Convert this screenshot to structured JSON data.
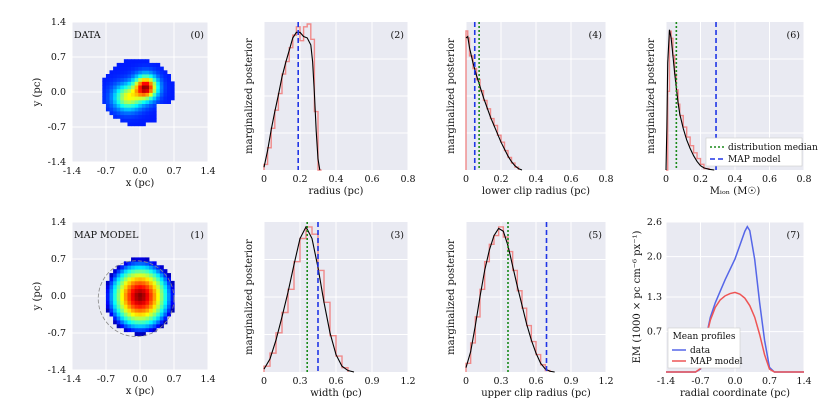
{
  "colors": {
    "panel_bg": "#E9EAF2",
    "grid": "#FFFFFF",
    "hist": "#F08A8A",
    "kde": "#000000",
    "median": "#1A8A1A",
    "map": "#2035E6",
    "profile_data": "#5566E8",
    "profile_map": "#EE5555"
  },
  "chart_data": [
    {
      "id": "p0",
      "type": "heatmap",
      "label": "(0)",
      "title": "DATA",
      "xlabel": "x (pc)",
      "ylabel": "y (pc)",
      "xlim": [
        -1.4,
        1.4
      ],
      "ylim": [
        -1.4,
        1.4
      ],
      "xticks": [
        "-1.4",
        "-0.7",
        "0.0",
        "0.7",
        "1.4"
      ],
      "yticks": [
        "1.4",
        "0.7",
        "0.0",
        "-0.7",
        "-1.4"
      ]
    },
    {
      "id": "p1",
      "type": "heatmap",
      "label": "(1)",
      "title": "MAP MODEL",
      "xlabel": "x (pc)",
      "ylabel": "y (pc)",
      "xlim": [
        -1.4,
        1.4
      ],
      "ylim": [
        -1.4,
        1.4
      ],
      "xticks": [
        "-1.4",
        "-0.7",
        "0.0",
        "0.7",
        "1.4"
      ],
      "yticks": [
        "1.4",
        "0.7",
        "0.0",
        "-0.7",
        "-1.4"
      ]
    },
    {
      "id": "p2",
      "type": "histogram",
      "label": "(2)",
      "xlabel": "radius (pc)",
      "ylabel": "marginalized posterior",
      "xlim": [
        0,
        0.8
      ],
      "xticks": [
        "0",
        "0.2",
        "0.4",
        "0.6",
        "0.8"
      ],
      "xtick_values": [
        0,
        0.2,
        0.4,
        0.6,
        0.8
      ],
      "bin_edges": [
        0.0,
        0.02,
        0.04,
        0.06,
        0.08,
        0.1,
        0.12,
        0.14,
        0.16,
        0.18,
        0.2,
        0.22,
        0.24,
        0.26,
        0.28,
        0.3,
        0.32
      ],
      "hist": [
        0.04,
        0.16,
        0.3,
        0.43,
        0.55,
        0.69,
        0.78,
        0.88,
        0.97,
        1.03,
        0.93,
        1.03,
        1.05,
        0.94,
        0.42,
        0.0
      ],
      "kde_x": [
        0.0,
        0.02,
        0.04,
        0.06,
        0.08,
        0.1,
        0.12,
        0.14,
        0.16,
        0.18,
        0.2,
        0.22,
        0.24,
        0.26,
        0.27,
        0.28,
        0.29,
        0.3,
        0.31
      ],
      "kde_y": [
        0.02,
        0.14,
        0.29,
        0.42,
        0.54,
        0.67,
        0.77,
        0.86,
        0.95,
        0.99,
        0.99,
        0.96,
        0.95,
        0.9,
        0.78,
        0.55,
        0.28,
        0.08,
        0.0
      ],
      "ymax": 1.05,
      "map": 0.19,
      "median": null
    },
    {
      "id": "p3",
      "type": "histogram",
      "label": "(3)",
      "xlabel": "width (pc)",
      "ylabel": "marginalized posterior",
      "xlim": [
        0,
        1.2
      ],
      "xticks": [
        "0",
        "0.3",
        "0.6",
        "0.9",
        "1.2"
      ],
      "xtick_values": [
        0,
        0.3,
        0.6,
        0.9,
        1.2
      ],
      "bin_edges": [
        0.0,
        0.05,
        0.1,
        0.15,
        0.2,
        0.25,
        0.3,
        0.35,
        0.4,
        0.45,
        0.5,
        0.55,
        0.6,
        0.65,
        0.7
      ],
      "hist": [
        0.04,
        0.13,
        0.27,
        0.41,
        0.57,
        0.76,
        0.92,
        1.0,
        0.95,
        0.7,
        0.48,
        0.25,
        0.11,
        0.03
      ],
      "kde_x": [
        0.0,
        0.05,
        0.1,
        0.15,
        0.2,
        0.25,
        0.3,
        0.35,
        0.4,
        0.45,
        0.5,
        0.55,
        0.6,
        0.65,
        0.7,
        0.75
      ],
      "kde_y": [
        0.02,
        0.09,
        0.22,
        0.38,
        0.55,
        0.74,
        0.92,
        1.0,
        0.92,
        0.72,
        0.48,
        0.27,
        0.12,
        0.04,
        0.01,
        0.0
      ],
      "ymax": 1.02,
      "map": 0.45,
      "median": 0.36
    },
    {
      "id": "p4",
      "type": "histogram",
      "label": "(4)",
      "xlabel": "lower clip radius (pc)",
      "ylabel": "marginalized posterior",
      "xlim": [
        0,
        0.8
      ],
      "xticks": [
        "0",
        "0.2",
        "0.4",
        "0.6",
        "0.8"
      ],
      "xtick_values": [
        0,
        0.2,
        0.4,
        0.6,
        0.8
      ],
      "bin_edges": [
        0.0,
        0.01,
        0.02,
        0.04,
        0.06,
        0.08,
        0.1,
        0.12,
        0.14,
        0.16,
        0.18,
        0.2,
        0.22,
        0.24,
        0.26,
        0.28,
        0.3
      ],
      "hist": [
        1.0,
        0.95,
        0.82,
        0.73,
        0.65,
        0.57,
        0.5,
        0.44,
        0.37,
        0.32,
        0.25,
        0.2,
        0.14,
        0.09,
        0.05,
        0.02
      ],
      "kde_x": [
        0.0,
        0.01,
        0.02,
        0.04,
        0.06,
        0.08,
        0.1,
        0.12,
        0.14,
        0.16,
        0.18,
        0.2,
        0.22,
        0.24,
        0.26,
        0.28,
        0.3,
        0.32
      ],
      "kde_y": [
        0.95,
        0.96,
        0.88,
        0.77,
        0.68,
        0.6,
        0.52,
        0.45,
        0.38,
        0.32,
        0.26,
        0.2,
        0.15,
        0.1,
        0.06,
        0.03,
        0.01,
        0.0
      ],
      "ymax": 1.05,
      "map": 0.05,
      "median": 0.075
    },
    {
      "id": "p5",
      "type": "histogram",
      "label": "(5)",
      "xlabel": "upper clip radius (pc)",
      "ylabel": "marginalized posterior",
      "xlim": [
        0,
        1.2
      ],
      "xticks": [
        "0",
        "0.3",
        "0.6",
        "0.9",
        "1.2"
      ],
      "xtick_values": [
        0,
        0.3,
        0.6,
        0.9,
        1.2
      ],
      "bin_edges": [
        0.0,
        0.04,
        0.08,
        0.12,
        0.16,
        0.2,
        0.24,
        0.28,
        0.32,
        0.36,
        0.4,
        0.44,
        0.48,
        0.52,
        0.56,
        0.6,
        0.64,
        0.68,
        0.72
      ],
      "hist": [
        0.06,
        0.2,
        0.38,
        0.57,
        0.76,
        0.88,
        0.94,
        1.0,
        0.93,
        0.83,
        0.7,
        0.56,
        0.44,
        0.32,
        0.21,
        0.12,
        0.05,
        0.01
      ],
      "kde_x": [
        0.0,
        0.04,
        0.08,
        0.12,
        0.16,
        0.2,
        0.24,
        0.28,
        0.32,
        0.36,
        0.4,
        0.44,
        0.48,
        0.52,
        0.56,
        0.6,
        0.64,
        0.68,
        0.72,
        0.76
      ],
      "kde_y": [
        0.03,
        0.14,
        0.32,
        0.52,
        0.7,
        0.84,
        0.94,
        0.99,
        0.97,
        0.87,
        0.73,
        0.59,
        0.46,
        0.33,
        0.22,
        0.13,
        0.06,
        0.02,
        0.005,
        0.0
      ],
      "ymax": 1.02,
      "map": 0.69,
      "median": 0.36
    },
    {
      "id": "p6",
      "type": "histogram",
      "label": "(6)",
      "xlabel": "Mᵢₒₙ (M☉)",
      "ylabel": "marginalized posterior",
      "xlim": [
        0,
        0.8
      ],
      "xticks": [
        "0",
        "0.2",
        "0.4",
        "0.6",
        "0.8"
      ],
      "xtick_values": [
        0,
        0.2,
        0.4,
        0.6,
        0.8
      ],
      "bin_edges": [
        0.0,
        0.01,
        0.02,
        0.03,
        0.04,
        0.05,
        0.06,
        0.07,
        0.08,
        0.1,
        0.12,
        0.14,
        0.16,
        0.18,
        0.2,
        0.22,
        0.25
      ],
      "hist": [
        0.0,
        0.55,
        0.97,
        0.92,
        0.8,
        0.67,
        0.56,
        0.46,
        0.38,
        0.3,
        0.23,
        0.17,
        0.12,
        0.08,
        0.04,
        0.01
      ],
      "kde_x": [
        0.0,
        0.005,
        0.01,
        0.02,
        0.03,
        0.04,
        0.05,
        0.06,
        0.07,
        0.08,
        0.1,
        0.12,
        0.14,
        0.16,
        0.18,
        0.2,
        0.22,
        0.25,
        0.28
      ],
      "kde_y": [
        0.0,
        0.3,
        0.75,
        0.98,
        0.92,
        0.8,
        0.68,
        0.57,
        0.47,
        0.39,
        0.29,
        0.21,
        0.15,
        0.1,
        0.06,
        0.03,
        0.015,
        0.005,
        0.0
      ],
      "ymax": 1.02,
      "map": 0.29,
      "median": 0.06,
      "legend": {
        "median": "distribution median",
        "map": "MAP model"
      }
    },
    {
      "id": "p7",
      "type": "line",
      "label": "(7)",
      "xlabel": "radial coordinate (pc)",
      "ylabel": "EM (1000 × pc cm⁻⁶ px⁻¹)",
      "xlim": [
        -1.4,
        1.4
      ],
      "ylim": [
        0,
        2.6
      ],
      "xticks": [
        "-1.4",
        "-0.7",
        "0.0",
        "0.7",
        "1.4"
      ],
      "xtick_values": [
        -1.4,
        -0.7,
        0,
        0.7,
        1.4
      ],
      "yticks": [
        "2.6",
        "2.0",
        "1.3",
        "0.7"
      ],
      "ytick_values": [
        2.6,
        2.0,
        1.3,
        0.7
      ],
      "series": [
        {
          "name": "data",
          "x": [
            -1.4,
            -0.8,
            -0.7,
            -0.6,
            -0.5,
            -0.4,
            -0.3,
            -0.2,
            -0.1,
            0.0,
            0.1,
            0.2,
            0.25,
            0.3,
            0.4,
            0.5,
            0.6,
            0.7,
            0.8,
            1.4
          ],
          "y": [
            0.0,
            0.0,
            0.05,
            0.55,
            0.95,
            1.2,
            1.4,
            1.6,
            1.78,
            1.96,
            2.2,
            2.44,
            2.52,
            2.45,
            1.95,
            1.2,
            0.55,
            0.08,
            0.0,
            0.0
          ]
        },
        {
          "name": "MAP model",
          "x": [
            -1.4,
            -0.8,
            -0.7,
            -0.6,
            -0.5,
            -0.4,
            -0.3,
            -0.2,
            -0.1,
            0.0,
            0.1,
            0.2,
            0.3,
            0.4,
            0.5,
            0.6,
            0.7,
            0.8,
            1.4
          ],
          "y": [
            0.0,
            0.0,
            0.06,
            0.55,
            0.9,
            1.12,
            1.25,
            1.32,
            1.36,
            1.38,
            1.35,
            1.28,
            1.15,
            0.95,
            0.65,
            0.3,
            0.05,
            0.0,
            0.0
          ]
        }
      ],
      "legend_title": "Mean profiles"
    }
  ]
}
